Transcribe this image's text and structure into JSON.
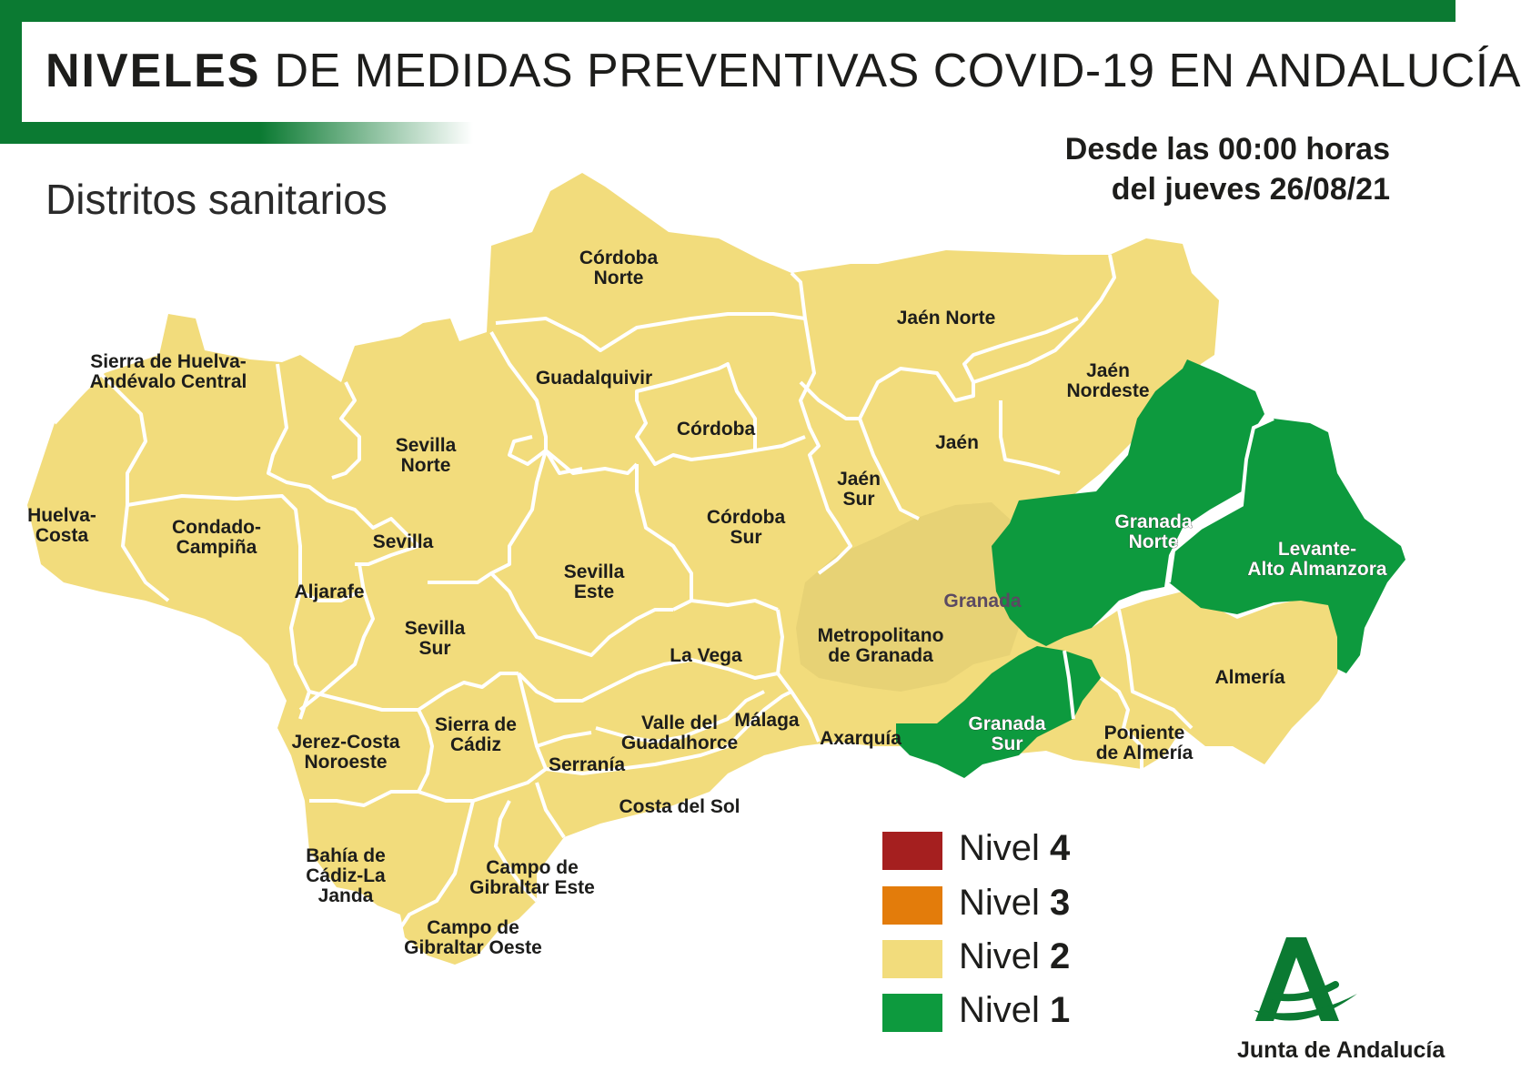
{
  "header": {
    "title_bold": "NIVELES",
    "title_rest": "DE MEDIDAS PREVENTIVAS COVID-19 EN ANDALUCÍA",
    "subtitle": "Distritos sanitarios",
    "date_line1": "Desde las 00:00 horas",
    "date_line2": "del jueves 26/08/21"
  },
  "colors": {
    "nivel4": "#a51f1f",
    "nivel3": "#e37c0b",
    "nivel2": "#f2dc7c",
    "nivel1": "#0d9a3e",
    "metropolitano": "#e7d275",
    "border": "#ffffff",
    "brand_green": "#0b7a32"
  },
  "legend": [
    {
      "prefix": "Nivel",
      "level": "4",
      "color_key": "nivel4"
    },
    {
      "prefix": "Nivel",
      "level": "3",
      "color_key": "nivel3"
    },
    {
      "prefix": "Nivel",
      "level": "2",
      "color_key": "nivel2"
    },
    {
      "prefix": "Nivel",
      "level": "1",
      "color_key": "nivel1"
    }
  ],
  "districts": [
    {
      "lines": [
        "Córdoba",
        "Norte"
      ],
      "level": 2
    },
    {
      "lines": [
        "Jaén Norte"
      ],
      "level": 2
    },
    {
      "lines": [
        "Sierra de Huelva-",
        "Andévalo Central"
      ],
      "level": 2
    },
    {
      "lines": [
        "Guadalquivir"
      ],
      "level": 2
    },
    {
      "lines": [
        "Jaén",
        "Nordeste"
      ],
      "level": 2
    },
    {
      "lines": [
        "Córdoba"
      ],
      "level": 2
    },
    {
      "lines": [
        "Sevilla",
        "Norte"
      ],
      "level": 2
    },
    {
      "lines": [
        "Jaén"
      ],
      "level": 2
    },
    {
      "lines": [
        "Jaén",
        "Sur"
      ],
      "level": 2
    },
    {
      "lines": [
        "Huelva-",
        "Costa"
      ],
      "level": 2
    },
    {
      "lines": [
        "Condado-",
        "Campiña"
      ],
      "level": 2
    },
    {
      "lines": [
        "Sevilla"
      ],
      "level": 2
    },
    {
      "lines": [
        "Córdoba",
        "Sur"
      ],
      "level": 2
    },
    {
      "lines": [
        "Granada",
        "Norte"
      ],
      "level": 1
    },
    {
      "lines": [
        "Levante-",
        "Alto Almanzora"
      ],
      "level": 1
    },
    {
      "lines": [
        "Sevilla",
        "Este"
      ],
      "level": 2
    },
    {
      "lines": [
        "Aljarafe"
      ],
      "level": 2
    },
    {
      "lines": [
        "Granada"
      ],
      "level": 2
    },
    {
      "lines": [
        "Sevilla",
        "Sur"
      ],
      "level": 2
    },
    {
      "lines": [
        "Metropolitano",
        "de Granada"
      ],
      "level": 2
    },
    {
      "lines": [
        "La Vega"
      ],
      "level": 2
    },
    {
      "lines": [
        "Almería"
      ],
      "level": 2
    },
    {
      "lines": [
        "Sierra de",
        "Cádiz"
      ],
      "level": 2
    },
    {
      "lines": [
        "Valle del",
        "Guadalhorce"
      ],
      "level": 2
    },
    {
      "lines": [
        "Málaga"
      ],
      "level": 2
    },
    {
      "lines": [
        "Jerez-Costa",
        "Noroeste"
      ],
      "level": 2
    },
    {
      "lines": [
        "Axarquía"
      ],
      "level": 2
    },
    {
      "lines": [
        "Granada",
        "Sur"
      ],
      "level": 1
    },
    {
      "lines": [
        "Poniente",
        "de Almería"
      ],
      "level": 2
    },
    {
      "lines": [
        "Serranía"
      ],
      "level": 2
    },
    {
      "lines": [
        "Costa del Sol"
      ],
      "level": 2
    },
    {
      "lines": [
        "Bahía de",
        "Cádiz-La",
        "Janda"
      ],
      "level": 2
    },
    {
      "lines": [
        "Campo de",
        "Gibraltar Este"
      ],
      "level": 2
    },
    {
      "lines": [
        "Campo de",
        "Gibraltar Oeste"
      ],
      "level": 2
    }
  ],
  "logo": {
    "name": "a-logo-icon",
    "text": "Junta de Andalucía"
  }
}
